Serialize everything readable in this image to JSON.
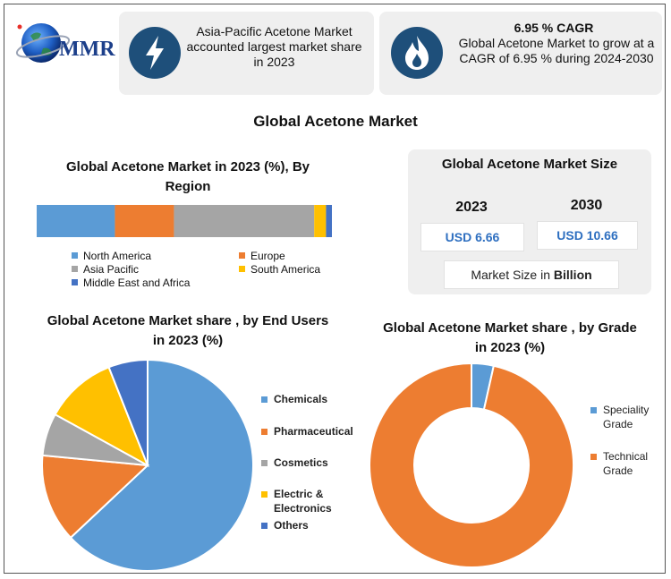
{
  "logo": {
    "text": "MMR"
  },
  "cards": {
    "share": {
      "text": "Asia-Pacific Acetone Market accounted largest market share in 2023",
      "icon": "lightning-icon"
    },
    "cagr": {
      "headline": "6.95 % CAGR",
      "text": "Global Acetone Market to grow at a CAGR of 6.95 % during 2024-2030",
      "icon": "flame-icon"
    }
  },
  "main_title": "Global Acetone Market",
  "market_size": {
    "title": "Global Acetone Market Size",
    "years": [
      "2023",
      "2030"
    ],
    "values": [
      "USD 6.66",
      "USD 10.66"
    ],
    "unit_prefix": "Market Size in ",
    "unit_bold": "Billion"
  },
  "colors": {
    "blue": "#5b9bd5",
    "orange": "#ed7d31",
    "gray": "#a5a5a5",
    "yellow": "#ffc000",
    "darkblue": "#4472c4",
    "icon_bg": "#1e4f7a"
  },
  "chart_data": [
    {
      "type": "bar",
      "orientation": "horizontal-stacked",
      "title": "Global Acetone Market in 2023 (%), By Region",
      "categories": [
        "North America",
        "Europe",
        "Asia Pacific",
        "South America",
        "Middle East and Africa"
      ],
      "values": [
        26.5,
        20,
        47.5,
        4,
        2
      ],
      "legend": "bottom"
    },
    {
      "type": "pie",
      "title": "Global  Acetone Market share , by End Users in 2023  (%)",
      "categories": [
        "Chemicals",
        "Pharmaceutical",
        "Cosmetics",
        "Electric & Electronics",
        "Others"
      ],
      "values": [
        63,
        13.5,
        6.5,
        11,
        6
      ],
      "legend": "right"
    },
    {
      "type": "pie",
      "subtype": "donut",
      "title": "Global  Acetone Market share , by Grade in 2023  (%)",
      "categories": [
        "Speciality Grade",
        "Technical Grade"
      ],
      "legend_lines": [
        [
          "Speciality",
          "Grade"
        ],
        [
          "Technical",
          "Grade"
        ]
      ],
      "values": [
        3.5,
        96.5
      ],
      "legend": "right"
    }
  ]
}
